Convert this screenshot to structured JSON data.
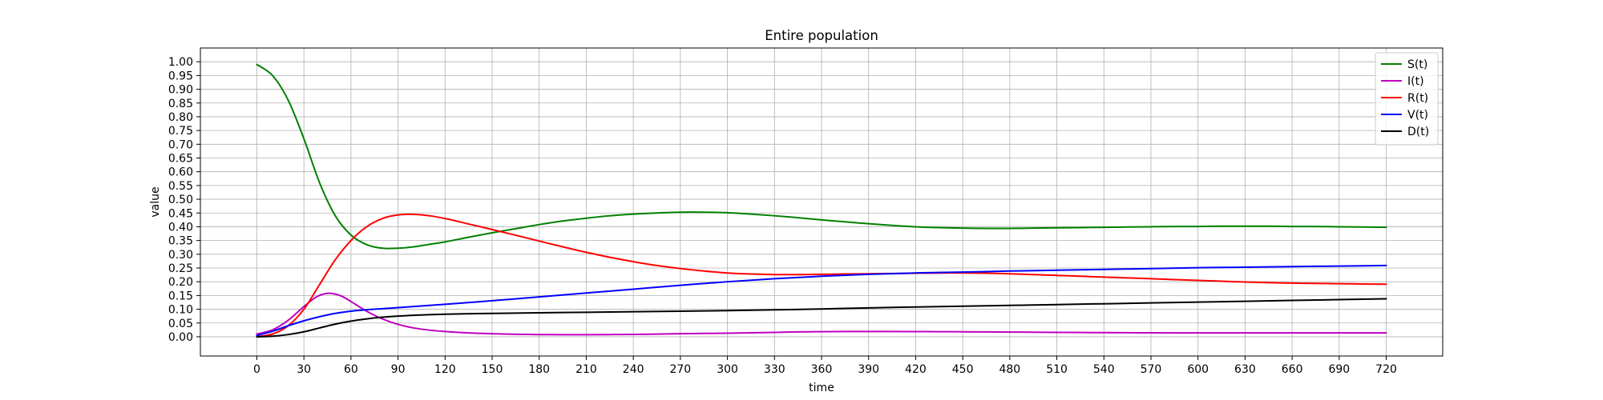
{
  "chart_data": {
    "type": "line",
    "title": "Entire population",
    "xlabel": "time",
    "ylabel": "value",
    "xlim": [
      -36,
      756
    ],
    "ylim": [
      -0.07,
      1.05
    ],
    "xticks": [
      0,
      30,
      60,
      90,
      120,
      150,
      180,
      210,
      240,
      270,
      300,
      330,
      360,
      390,
      420,
      450,
      480,
      510,
      540,
      570,
      600,
      630,
      660,
      690,
      720
    ],
    "yticks": [
      0.0,
      0.05,
      0.1,
      0.15,
      0.2,
      0.25,
      0.3,
      0.35,
      0.4,
      0.45,
      0.5,
      0.55,
      0.6,
      0.65,
      0.7,
      0.75,
      0.8,
      0.85,
      0.9,
      0.95,
      1.0
    ],
    "grid": true,
    "legend_position": "upper right",
    "series": [
      {
        "name": "S(t)",
        "color": "#008000",
        "x": [
          0,
          10,
          20,
          30,
          40,
          50,
          60,
          70,
          80,
          90,
          100,
          110,
          120,
          135,
          150,
          165,
          180,
          195,
          210,
          225,
          240,
          255,
          270,
          285,
          300,
          315,
          330,
          345,
          360,
          375,
          390,
          405,
          420,
          435,
          450,
          465,
          480,
          495,
          510,
          525,
          540,
          555,
          570,
          585,
          600,
          615,
          630,
          645,
          660,
          675,
          690,
          705,
          720
        ],
        "y": [
          0.99,
          0.95,
          0.86,
          0.72,
          0.56,
          0.44,
          0.37,
          0.335,
          0.322,
          0.322,
          0.327,
          0.336,
          0.345,
          0.362,
          0.378,
          0.393,
          0.408,
          0.421,
          0.431,
          0.44,
          0.446,
          0.45,
          0.453,
          0.453,
          0.451,
          0.446,
          0.44,
          0.433,
          0.425,
          0.418,
          0.411,
          0.405,
          0.4,
          0.397,
          0.395,
          0.394,
          0.394,
          0.395,
          0.396,
          0.397,
          0.398,
          0.399,
          0.4,
          0.401,
          0.401,
          0.402,
          0.402,
          0.402,
          0.401,
          0.401,
          0.4,
          0.399,
          0.398
        ]
      },
      {
        "name": "I(t)",
        "color": "#bf00bf",
        "x": [
          0,
          10,
          20,
          30,
          38,
          45,
          50,
          55,
          60,
          70,
          80,
          90,
          100,
          110,
          120,
          135,
          150,
          165,
          180,
          195,
          210,
          225,
          240,
          255,
          270,
          285,
          300,
          315,
          330,
          345,
          360,
          375,
          390,
          405,
          420,
          435,
          450,
          465,
          480,
          495,
          510,
          525,
          540,
          555,
          570,
          585,
          600,
          615,
          630,
          645,
          660,
          675,
          690,
          705,
          720
        ],
        "y": [
          0.01,
          0.025,
          0.06,
          0.11,
          0.145,
          0.158,
          0.155,
          0.145,
          0.128,
          0.093,
          0.065,
          0.045,
          0.032,
          0.024,
          0.019,
          0.014,
          0.011,
          0.009,
          0.008,
          0.0075,
          0.0075,
          0.008,
          0.0085,
          0.0095,
          0.011,
          0.012,
          0.013,
          0.0145,
          0.016,
          0.0175,
          0.0185,
          0.019,
          0.0192,
          0.019,
          0.0188,
          0.0184,
          0.018,
          0.0175,
          0.017,
          0.0165,
          0.016,
          0.0155,
          0.015,
          0.0146,
          0.0143,
          0.0141,
          0.014,
          0.0139,
          0.0139,
          0.0139,
          0.014,
          0.014,
          0.014,
          0.014,
          0.014
        ]
      },
      {
        "name": "R(t)",
        "color": "#ff0000",
        "x": [
          0,
          10,
          20,
          30,
          40,
          50,
          60,
          70,
          80,
          90,
          100,
          110,
          120,
          135,
          150,
          165,
          180,
          195,
          210,
          225,
          240,
          255,
          270,
          285,
          300,
          315,
          330,
          345,
          360,
          375,
          390,
          405,
          420,
          435,
          450,
          465,
          480,
          495,
          510,
          525,
          540,
          555,
          570,
          585,
          600,
          615,
          630,
          645,
          660,
          675,
          690,
          705,
          720
        ],
        "y": [
          0.0,
          0.01,
          0.04,
          0.1,
          0.19,
          0.28,
          0.35,
          0.4,
          0.43,
          0.443,
          0.445,
          0.44,
          0.43,
          0.41,
          0.39,
          0.369,
          0.348,
          0.327,
          0.307,
          0.289,
          0.273,
          0.259,
          0.248,
          0.239,
          0.232,
          0.228,
          0.226,
          0.226,
          0.227,
          0.228,
          0.229,
          0.23,
          0.231,
          0.232,
          0.232,
          0.231,
          0.229,
          0.226,
          0.223,
          0.22,
          0.217,
          0.214,
          0.211,
          0.208,
          0.205,
          0.202,
          0.199,
          0.197,
          0.195,
          0.194,
          0.193,
          0.192,
          0.191
        ]
      },
      {
        "name": "V(t)",
        "color": "#0000ff",
        "x": [
          0,
          10,
          20,
          30,
          40,
          50,
          60,
          70,
          80,
          90,
          100,
          120,
          150,
          180,
          210,
          240,
          270,
          300,
          330,
          360,
          390,
          420,
          450,
          480,
          510,
          540,
          570,
          600,
          630,
          660,
          690,
          720
        ],
        "y": [
          0.005,
          0.02,
          0.04,
          0.058,
          0.073,
          0.085,
          0.093,
          0.098,
          0.102,
          0.106,
          0.11,
          0.118,
          0.131,
          0.145,
          0.159,
          0.173,
          0.187,
          0.2,
          0.211,
          0.22,
          0.227,
          0.232,
          0.235,
          0.239,
          0.242,
          0.245,
          0.248,
          0.251,
          0.253,
          0.255,
          0.257,
          0.259
        ]
      },
      {
        "name": "D(t)",
        "color": "#000000",
        "x": [
          0,
          10,
          20,
          30,
          40,
          50,
          60,
          70,
          80,
          90,
          100,
          120,
          150,
          180,
          210,
          240,
          270,
          300,
          330,
          360,
          390,
          420,
          450,
          480,
          510,
          540,
          570,
          600,
          630,
          660,
          690,
          720
        ],
        "y": [
          0.0,
          0.002,
          0.008,
          0.018,
          0.032,
          0.046,
          0.057,
          0.065,
          0.071,
          0.075,
          0.078,
          0.082,
          0.085,
          0.087,
          0.089,
          0.091,
          0.093,
          0.095,
          0.098,
          0.101,
          0.105,
          0.108,
          0.111,
          0.114,
          0.117,
          0.12,
          0.123,
          0.126,
          0.129,
          0.132,
          0.135,
          0.138
        ]
      }
    ]
  }
}
